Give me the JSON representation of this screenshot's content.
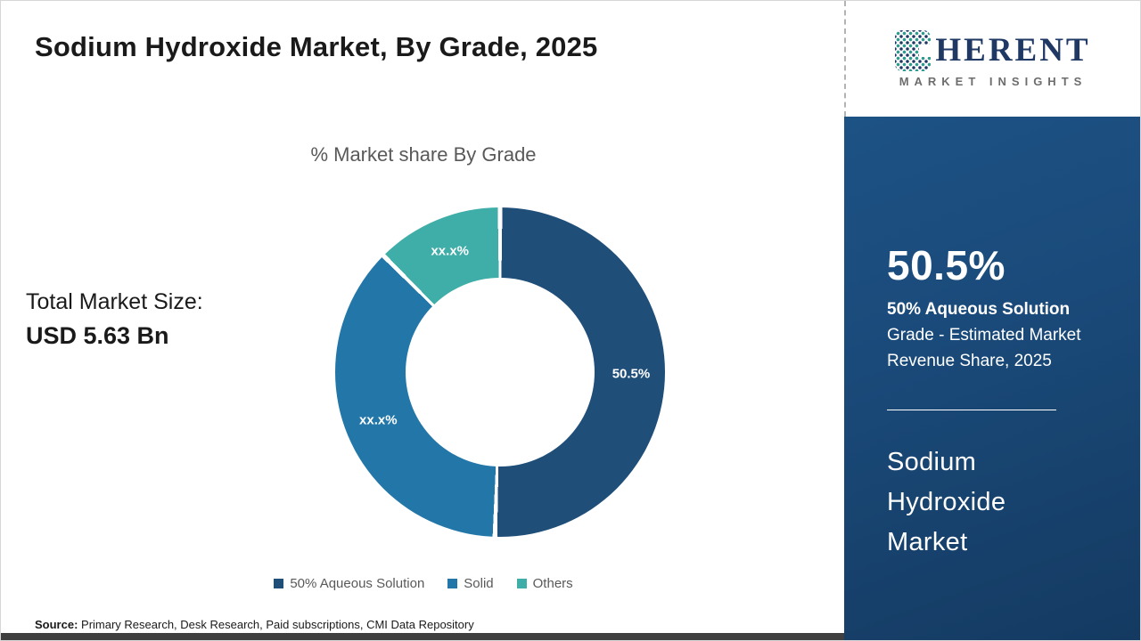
{
  "title": "Sodium Hydroxide Market, By Grade, 2025",
  "logo": {
    "brand_rest": "HERENT",
    "tagline": "MARKET INSIGHTS"
  },
  "left_panel": {
    "total_label": "Total Market Size:",
    "total_value": "USD 5.63 Bn"
  },
  "chart_data": {
    "type": "pie",
    "donut": true,
    "title": "% Market share By Grade",
    "categories": [
      "50% Aqueous Solution",
      "Solid",
      "Others"
    ],
    "values": [
      50.5,
      37,
      12.5
    ],
    "displayed_labels": [
      "50.5%",
      "xx.x%",
      "xx.x%"
    ],
    "colors": [
      "#1F4E79",
      "#2277A8",
      "#3FADA8"
    ],
    "legend_position": "bottom"
  },
  "sidebar": {
    "stat_value": "50.5%",
    "stat_line1": "50% Aqueous Solution",
    "stat_line2": "Grade - Estimated Market",
    "stat_line3": "Revenue Share, 2025",
    "market_line1": "Sodium",
    "market_line2": "Hydroxide",
    "market_line3": "Market"
  },
  "footer": {
    "source_label": "Source:",
    "source_text": " Primary Research, Desk Research, Paid subscriptions, CMI Data Repository"
  }
}
